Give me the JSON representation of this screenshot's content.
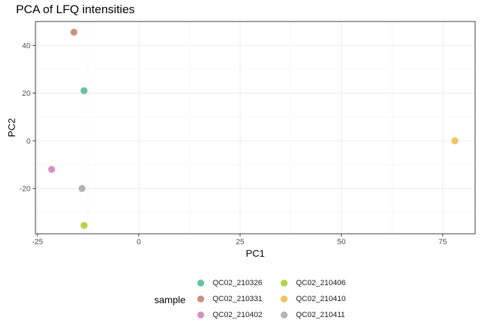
{
  "chart_data": {
    "type": "scatter",
    "title": "PCA of LFQ intensities",
    "xlabel": "PC1",
    "ylabel": "PC2",
    "xlim": [
      -25.5,
      83
    ],
    "ylim": [
      -39,
      50
    ],
    "xticks": [
      -25,
      0,
      25,
      50,
      75
    ],
    "xtick_labels": [
      "-25",
      "0",
      "25",
      "50",
      "75"
    ],
    "yticks": [
      -20,
      0,
      20,
      40
    ],
    "ytick_labels": [
      "-20",
      "0",
      "20",
      "40"
    ],
    "grid": true,
    "legend_title": "sample",
    "legend_position": "bottom",
    "series": [
      {
        "name": "QC02_210326",
        "color": "#66c2a5",
        "x": -13.5,
        "y": 21
      },
      {
        "name": "QC02_210331",
        "color": "#cd8f80",
        "x": -16,
        "y": 45.5
      },
      {
        "name": "QC02_210402",
        "color": "#d390c8",
        "x": -21.5,
        "y": -12
      },
      {
        "name": "QC02_210406",
        "color": "#b3d449",
        "x": -13.5,
        "y": -35.5
      },
      {
        "name": "QC02_210410",
        "color": "#ebc560",
        "x": 78,
        "y": 0
      },
      {
        "name": "QC02_210411",
        "color": "#b3b3b3",
        "x": -14,
        "y": -20
      }
    ]
  }
}
